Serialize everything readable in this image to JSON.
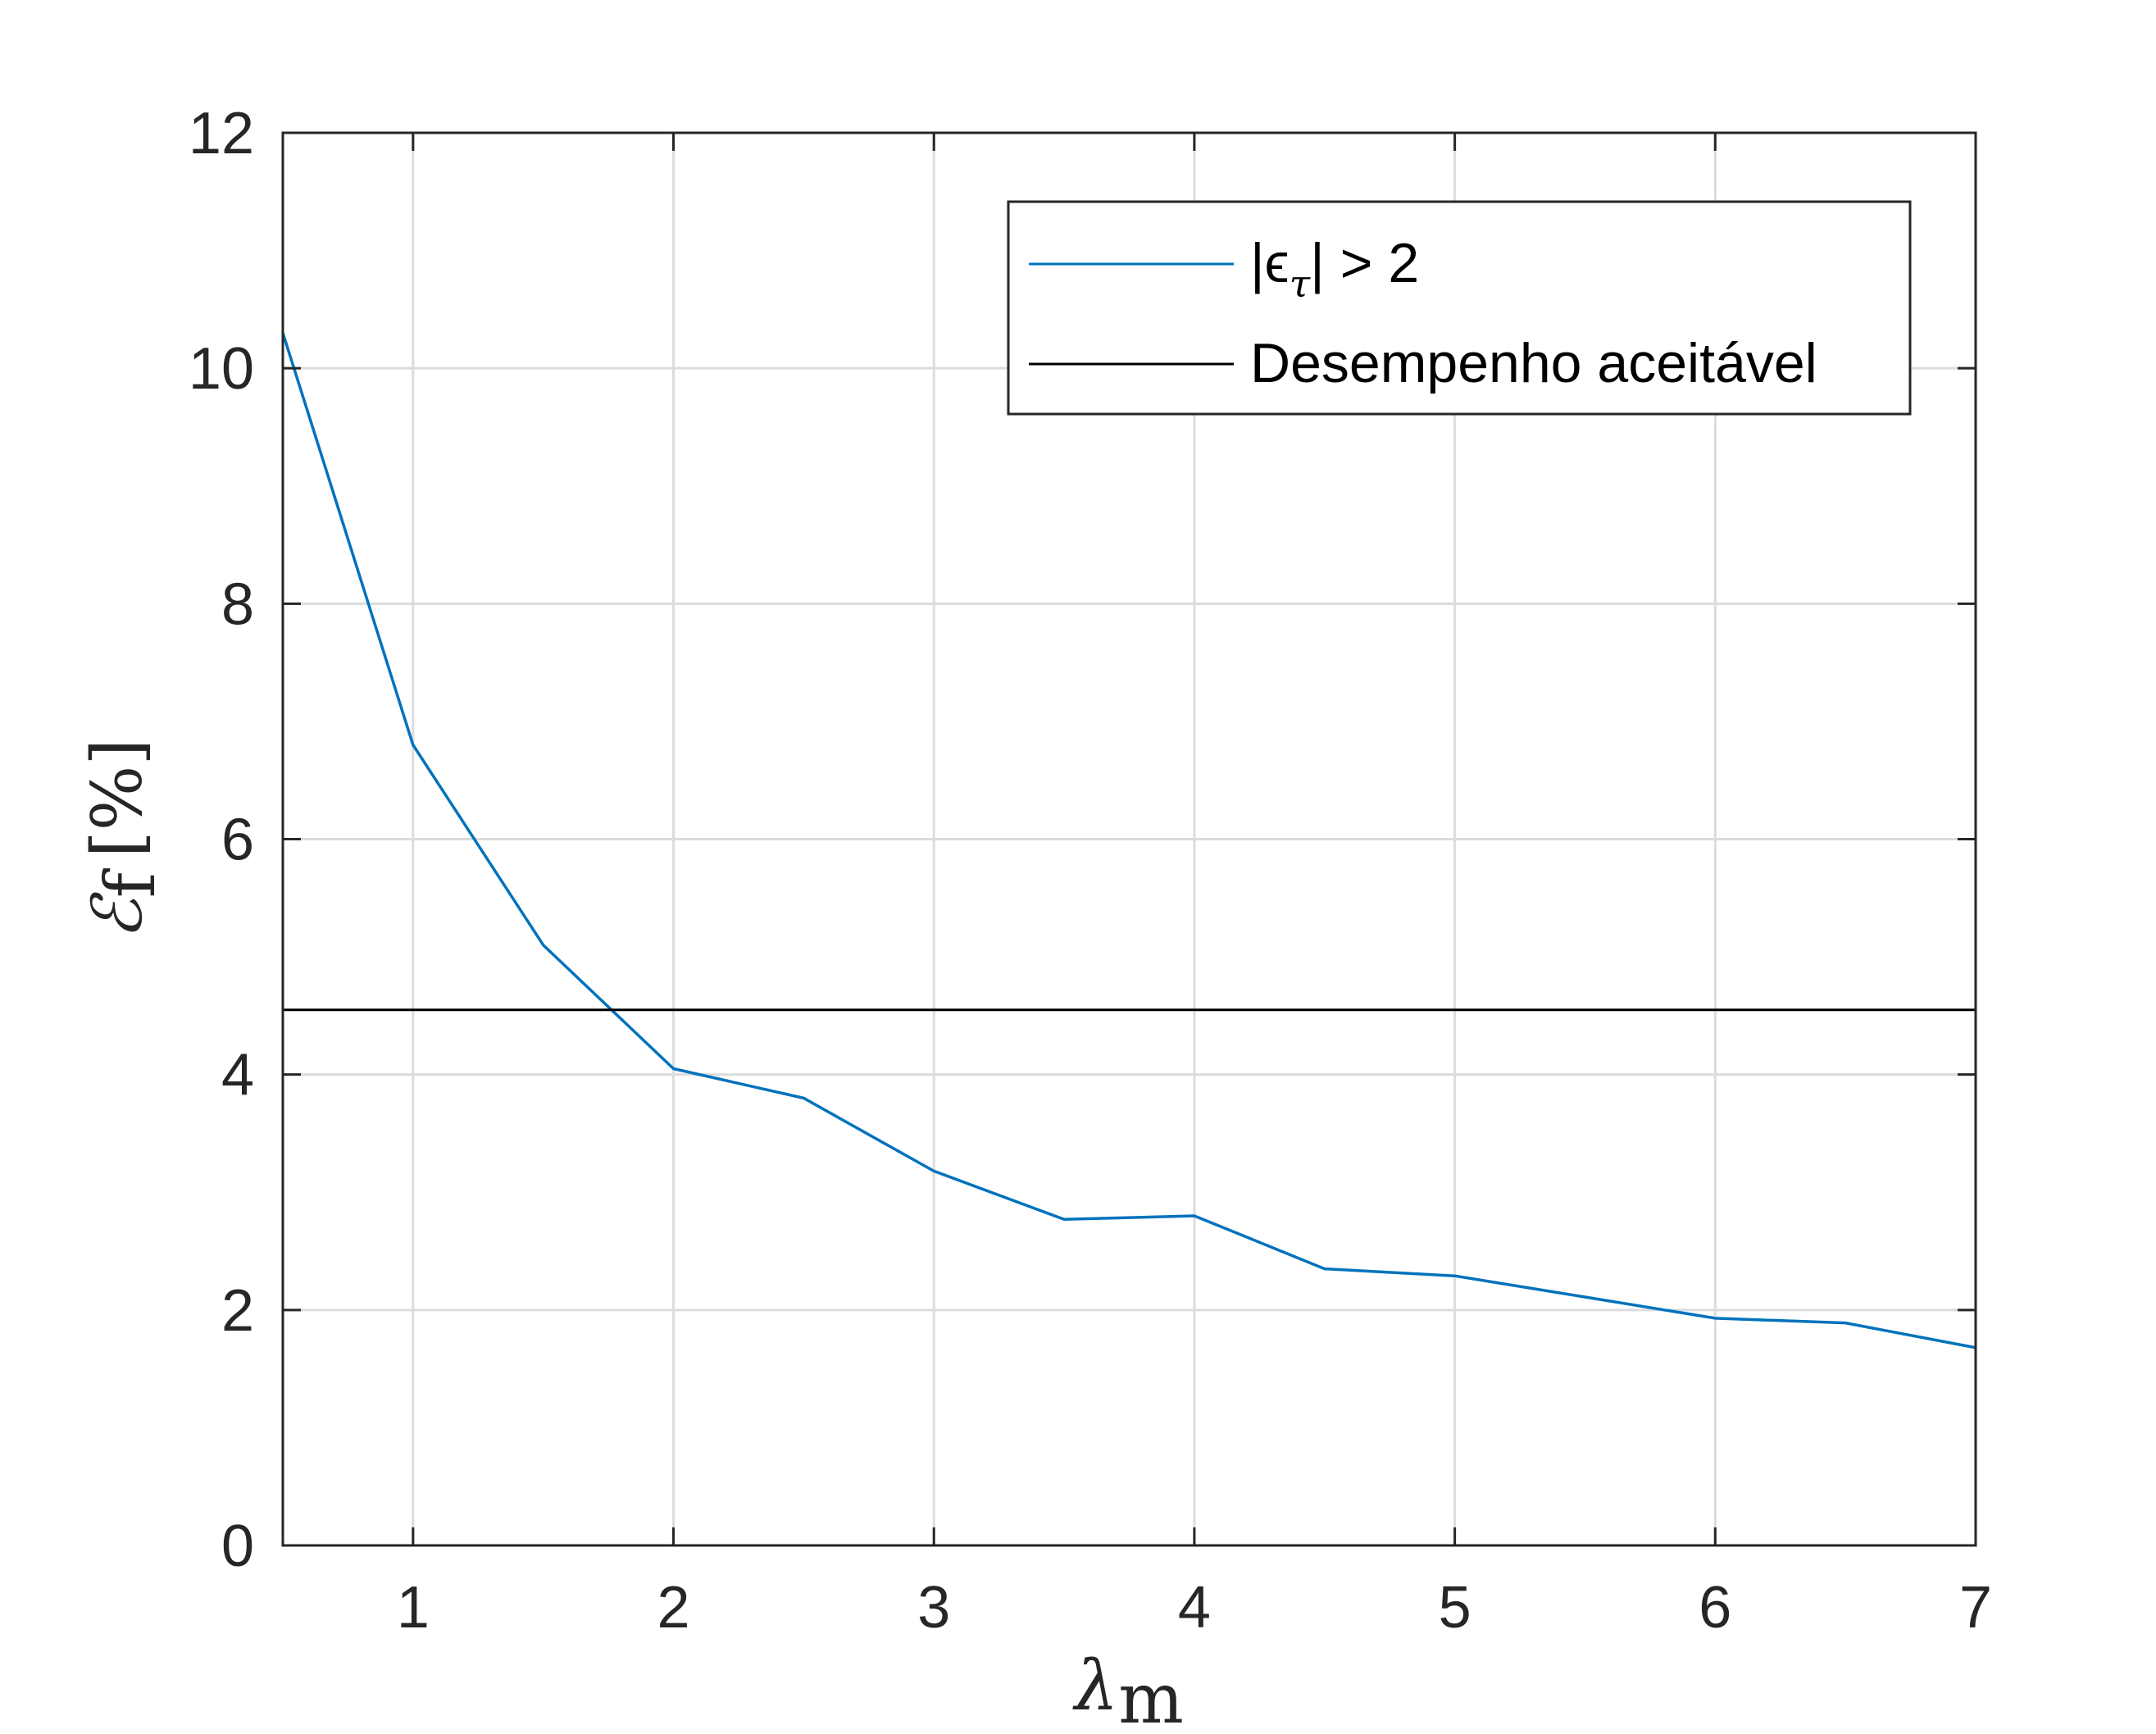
{
  "chart_data": {
    "type": "line",
    "title": "",
    "xlabel": {
      "base": "λ",
      "sub": "m"
    },
    "ylabel": {
      "base": "ℰ",
      "sub": "f",
      "suffix": "[%]"
    },
    "xlim": [
      0.5,
      7
    ],
    "ylim": [
      0,
      12
    ],
    "xticks": [
      1,
      2,
      3,
      4,
      5,
      6,
      7
    ],
    "yticks": [
      0,
      2,
      4,
      6,
      8,
      10,
      12
    ],
    "grid": true,
    "legend_position": "top-right",
    "series": [
      {
        "name": "|ϵτ| > 2",
        "legend": {
          "pre": "|ϵ",
          "sub": "τ",
          "post": "| > 2"
        },
        "color": "#0072BD",
        "x": [
          0.5,
          1,
          1.5,
          2,
          2.5,
          3,
          3.5,
          4,
          4.5,
          5,
          5.5,
          6,
          6.5,
          7
        ],
        "y": [
          10.3,
          6.8,
          5.1,
          4.05,
          3.8,
          3.18,
          2.77,
          2.8,
          2.35,
          2.29,
          2.11,
          1.93,
          1.89,
          1.68
        ]
      },
      {
        "name": "Desempenho aceitável",
        "color": "#000000",
        "x": [
          0.5,
          7
        ],
        "y": [
          4.55,
          4.55
        ]
      }
    ]
  }
}
